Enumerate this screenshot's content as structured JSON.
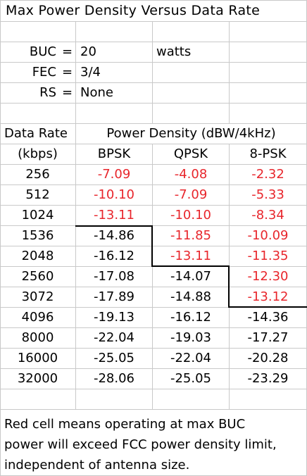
{
  "title": "Max Power Density Versus Data Rate",
  "params": [
    {
      "key": "BUC",
      "eq": "=",
      "value": "20",
      "unit": "watts"
    },
    {
      "key": "FEC",
      "eq": "=",
      "value": "3/4",
      "unit": ""
    },
    {
      "key": "RS",
      "eq": "=",
      "value": "None",
      "unit": ""
    }
  ],
  "table": {
    "header_rate": "Data Rate",
    "header_density": "Power Density (dBW/4kHz)",
    "rate_unit": "(kbps)",
    "mod_headers": [
      "BPSK",
      "QPSK",
      "8-PSK"
    ],
    "red_color": "#e8262c",
    "rows": [
      {
        "rate": "256",
        "bpsk": "-7.09",
        "qpsk": "-4.08",
        "psk8": "-2.32",
        "red": [
          true,
          true,
          true
        ]
      },
      {
        "rate": "512",
        "bpsk": "-10.10",
        "qpsk": "-7.09",
        "psk8": "-5.33",
        "red": [
          true,
          true,
          true
        ]
      },
      {
        "rate": "1024",
        "bpsk": "-13.11",
        "qpsk": "-10.10",
        "psk8": "-8.34",
        "red": [
          true,
          true,
          true
        ]
      },
      {
        "rate": "1536",
        "bpsk": "-14.86",
        "qpsk": "-11.85",
        "psk8": "-10.09",
        "red": [
          false,
          true,
          true
        ]
      },
      {
        "rate": "2048",
        "bpsk": "-16.12",
        "qpsk": "-13.11",
        "psk8": "-11.35",
        "red": [
          false,
          true,
          true
        ]
      },
      {
        "rate": "2560",
        "bpsk": "-17.08",
        "qpsk": "-14.07",
        "psk8": "-12.30",
        "red": [
          false,
          false,
          true
        ]
      },
      {
        "rate": "3072",
        "bpsk": "-17.89",
        "qpsk": "-14.88",
        "psk8": "-13.12",
        "red": [
          false,
          false,
          true
        ]
      },
      {
        "rate": "4096",
        "bpsk": "-19.13",
        "qpsk": "-16.12",
        "psk8": "-14.36",
        "red": [
          false,
          false,
          false
        ]
      },
      {
        "rate": "8000",
        "bpsk": "-22.04",
        "qpsk": "-19.03",
        "psk8": "-17.27",
        "red": [
          false,
          false,
          false
        ]
      },
      {
        "rate": "16000",
        "bpsk": "-25.05",
        "qpsk": "-22.04",
        "psk8": "-20.28",
        "red": [
          false,
          false,
          false
        ]
      },
      {
        "rate": "32000",
        "bpsk": "-28.06",
        "qpsk": "-25.05",
        "psk8": "-23.29",
        "red": [
          false,
          false,
          false
        ]
      }
    ]
  },
  "note": [
    "Red cell means operating at max BUC",
    "power will exceed FCC power density limit,",
    "independent of antenna size."
  ]
}
